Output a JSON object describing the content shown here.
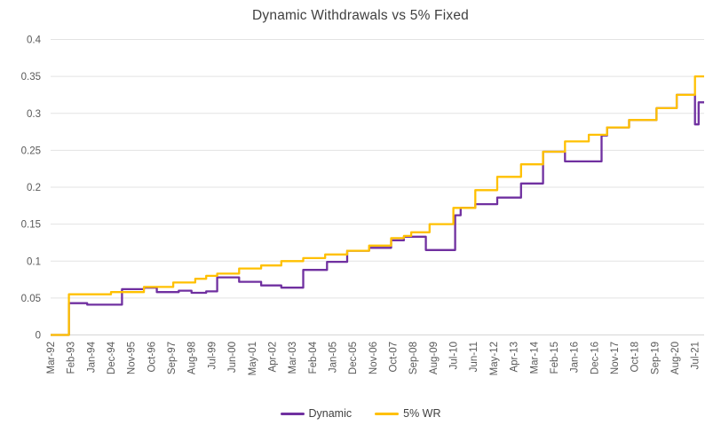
{
  "chart": {
    "title": "Dynamic Withdrawals vs 5% Fixed"
  },
  "colors": {
    "background": "#FFFFFF",
    "gridline": "#E3E3E3",
    "axis_line": "#D6D6D6",
    "tick_text": "#595959",
    "title_text": "#404040",
    "legend_text": "#404040",
    "dynamic_series": "#7030A0",
    "fixed_series": "#FFC000"
  },
  "chart_data": {
    "type": "line",
    "title": "Dynamic Withdrawals vs 5% Fixed",
    "interpolation": "step-after",
    "x_unit": "months since Mar-1992, monthly data Mar-92 through Dec-21",
    "x_domain": [
      0,
      357
    ],
    "x_tick_interval_months": 11,
    "x_tick_labels": [
      "Mar-92",
      "Feb-93",
      "Jan-94",
      "Dec-94",
      "Nov-95",
      "Oct-96",
      "Sep-97",
      "Aug-98",
      "Jul-99",
      "Jun-00",
      "May-01",
      "Apr-02",
      "Mar-03",
      "Feb-04",
      "Jan-05",
      "Dec-05",
      "Nov-06",
      "Oct-07",
      "Sep-08",
      "Aug-09",
      "Jul-10",
      "Jun-11",
      "May-12",
      "Apr-13",
      "Mar-14",
      "Feb-15",
      "Jan-16",
      "Dec-16",
      "Nov-17",
      "Oct-18",
      "Sep-19",
      "Aug-20",
      "Jul-21"
    ],
    "ylim": [
      0,
      0.4
    ],
    "y_ticks": [
      0,
      0.05,
      0.1,
      0.15,
      0.2,
      0.25,
      0.3,
      0.35,
      0.4
    ],
    "y_tick_labels": [
      "0",
      "0.05",
      "0.1",
      "0.15",
      "0.2",
      "0.25",
      "0.3",
      "0.35",
      "0.4"
    ],
    "grid": "horizontal-only",
    "legend_position": "bottom-center",
    "series": [
      {
        "name": "Dynamic",
        "color": "#7030A0",
        "breakpoints": [
          [
            0,
            0
          ],
          [
            10,
            0.043
          ],
          [
            20,
            0.041
          ],
          [
            39,
            0.062
          ],
          [
            51,
            0.064
          ],
          [
            58,
            0.058
          ],
          [
            70,
            0.06
          ],
          [
            77,
            0.057
          ],
          [
            85,
            0.059
          ],
          [
            91,
            0.078
          ],
          [
            103,
            0.072
          ],
          [
            115,
            0.067
          ],
          [
            126,
            0.064
          ],
          [
            138,
            0.088
          ],
          [
            151,
            0.099
          ],
          [
            162,
            0.114
          ],
          [
            174,
            0.118
          ],
          [
            186,
            0.128
          ],
          [
            193,
            0.133
          ],
          [
            205,
            0.115
          ],
          [
            221,
            0.162
          ],
          [
            224,
            0.172
          ],
          [
            232,
            0.177
          ],
          [
            244,
            0.186
          ],
          [
            257,
            0.205
          ],
          [
            269,
            0.248
          ],
          [
            281,
            0.235
          ],
          [
            301,
            0.27
          ],
          [
            304,
            0.281
          ],
          [
            316,
            0.291
          ],
          [
            331,
            0.307
          ],
          [
            342,
            0.325
          ],
          [
            352,
            0.285
          ],
          [
            354,
            0.315
          ]
        ]
      },
      {
        "name": "5% WR",
        "color": "#FFC000",
        "breakpoints": [
          [
            0,
            0
          ],
          [
            10,
            0.055
          ],
          [
            33,
            0.058
          ],
          [
            51,
            0.065
          ],
          [
            67,
            0.071
          ],
          [
            79,
            0.076
          ],
          [
            85,
            0.08
          ],
          [
            91,
            0.083
          ],
          [
            103,
            0.09
          ],
          [
            115,
            0.094
          ],
          [
            126,
            0.1
          ],
          [
            138,
            0.104
          ],
          [
            150,
            0.109
          ],
          [
            162,
            0.114
          ],
          [
            174,
            0.121
          ],
          [
            186,
            0.131
          ],
          [
            193,
            0.134
          ],
          [
            197,
            0.139
          ],
          [
            207,
            0.15
          ],
          [
            220,
            0.172
          ],
          [
            232,
            0.196
          ],
          [
            244,
            0.214
          ],
          [
            257,
            0.231
          ],
          [
            269,
            0.248
          ],
          [
            281,
            0.262
          ],
          [
            294,
            0.271
          ],
          [
            304,
            0.281
          ],
          [
            316,
            0.291
          ],
          [
            331,
            0.307
          ],
          [
            342,
            0.325
          ],
          [
            352,
            0.35
          ]
        ]
      }
    ]
  }
}
